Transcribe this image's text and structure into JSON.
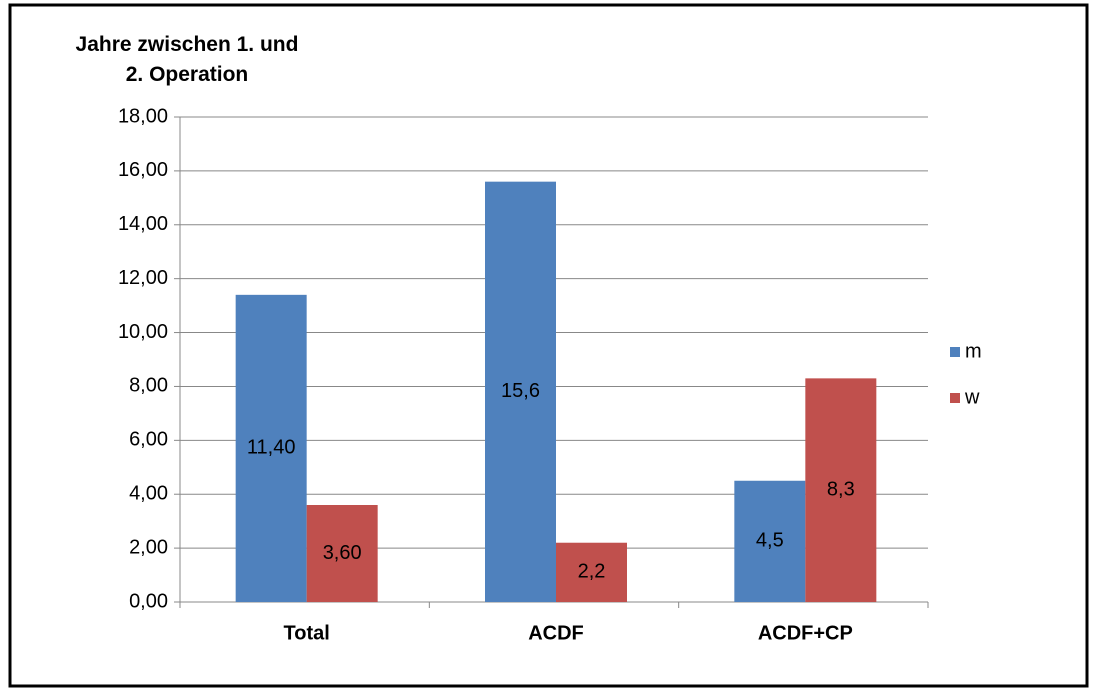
{
  "chart_data": {
    "type": "bar",
    "title": "Jahre zwischen 1. und\n2. Operation",
    "categories": [
      "Total",
      "ACDF",
      "ACDF+CP"
    ],
    "series": [
      {
        "name": "m",
        "color": "#4f81bd",
        "values": [
          11.4,
          15.6,
          4.5
        ],
        "value_labels": [
          "11,40",
          "15,6",
          "4,5"
        ]
      },
      {
        "name": "w",
        "color": "#c0504d",
        "values": [
          3.6,
          2.2,
          8.3
        ],
        "value_labels": [
          "3,60",
          "2,2",
          "8,3"
        ]
      }
    ],
    "ylim": [
      0,
      18
    ],
    "yticks": [
      {
        "value": 0,
        "label": "0,00"
      },
      {
        "value": 2,
        "label": "2,00"
      },
      {
        "value": 4,
        "label": "4,00"
      },
      {
        "value": 6,
        "label": "6,00"
      },
      {
        "value": 8,
        "label": "8,00"
      },
      {
        "value": 10,
        "label": "10,00"
      },
      {
        "value": 12,
        "label": "12,00"
      },
      {
        "value": 14,
        "label": "14,00"
      },
      {
        "value": 16,
        "label": "16,00"
      },
      {
        "value": 18,
        "label": "18,00"
      }
    ],
    "grid": true,
    "legend": "right"
  }
}
